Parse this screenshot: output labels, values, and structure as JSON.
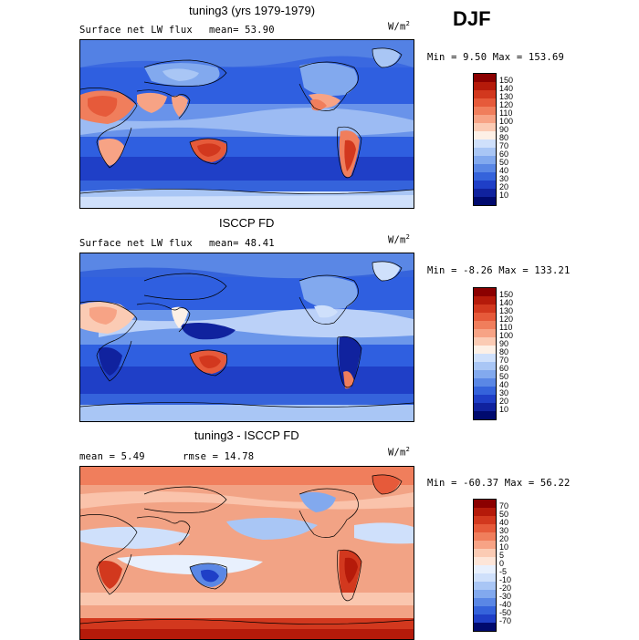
{
  "season": "DJF",
  "panels": [
    {
      "title": "tuning3 (yrs 1979-1979)",
      "left_label": "Surface net LW flux",
      "stat_text": "mean=  53.90",
      "units": "W/m",
      "units_sup": "2",
      "minmax": "Min =    9.50 Max = 153.69",
      "levels": [
        "150",
        "140",
        "130",
        "120",
        "110",
        "100",
        "90",
        "80",
        "70",
        "60",
        "50",
        "40",
        "30",
        "20",
        "10"
      ]
    },
    {
      "title": "ISCCP FD",
      "left_label": "Surface net LW flux",
      "stat_text": "mean=  48.41",
      "units": "W/m",
      "units_sup": "2",
      "minmax": "Min =  -8.26 Max = 133.21",
      "levels": [
        "150",
        "140",
        "130",
        "120",
        "110",
        "100",
        "90",
        "80",
        "70",
        "60",
        "50",
        "40",
        "30",
        "20",
        "10"
      ]
    },
    {
      "title": "tuning3 - ISCCP FD",
      "left_label": "mean =   5.49",
      "stat_text": "rmse =  14.78",
      "units": "W/m",
      "units_sup": "2",
      "minmax": "Min = -60.37 Max =  56.22",
      "levels": [
        "70",
        "50",
        "40",
        "30",
        "20",
        "10",
        "5",
        "0",
        "-5",
        "-10",
        "-20",
        "-30",
        "-40",
        "-50",
        "-70"
      ]
    }
  ],
  "colors": {
    "abs_scale": [
      "#8b0000",
      "#b51a0a",
      "#d2381e",
      "#e65a3a",
      "#f07e5c",
      "#f7a385",
      "#fbcbb4",
      "#fdf0e6",
      "#cfe0fb",
      "#a9c6f5",
      "#82a9ee",
      "#5a87e5",
      "#3563db",
      "#1f3fc7",
      "#10229e",
      "#000a6e"
    ],
    "diff_scale": [
      "#8b0000",
      "#b51a0a",
      "#d2381e",
      "#e65a3a",
      "#f07e5c",
      "#f7a385",
      "#fbcbb4",
      "#fde5d8",
      "#e8f0fd",
      "#cfe0fb",
      "#a9c6f5",
      "#82a9ee",
      "#5a87e5",
      "#3563db",
      "#1f3fc7",
      "#000a6e"
    ],
    "ocean_blue": "#2f5fe0",
    "diff_base": "#f2a385"
  }
}
